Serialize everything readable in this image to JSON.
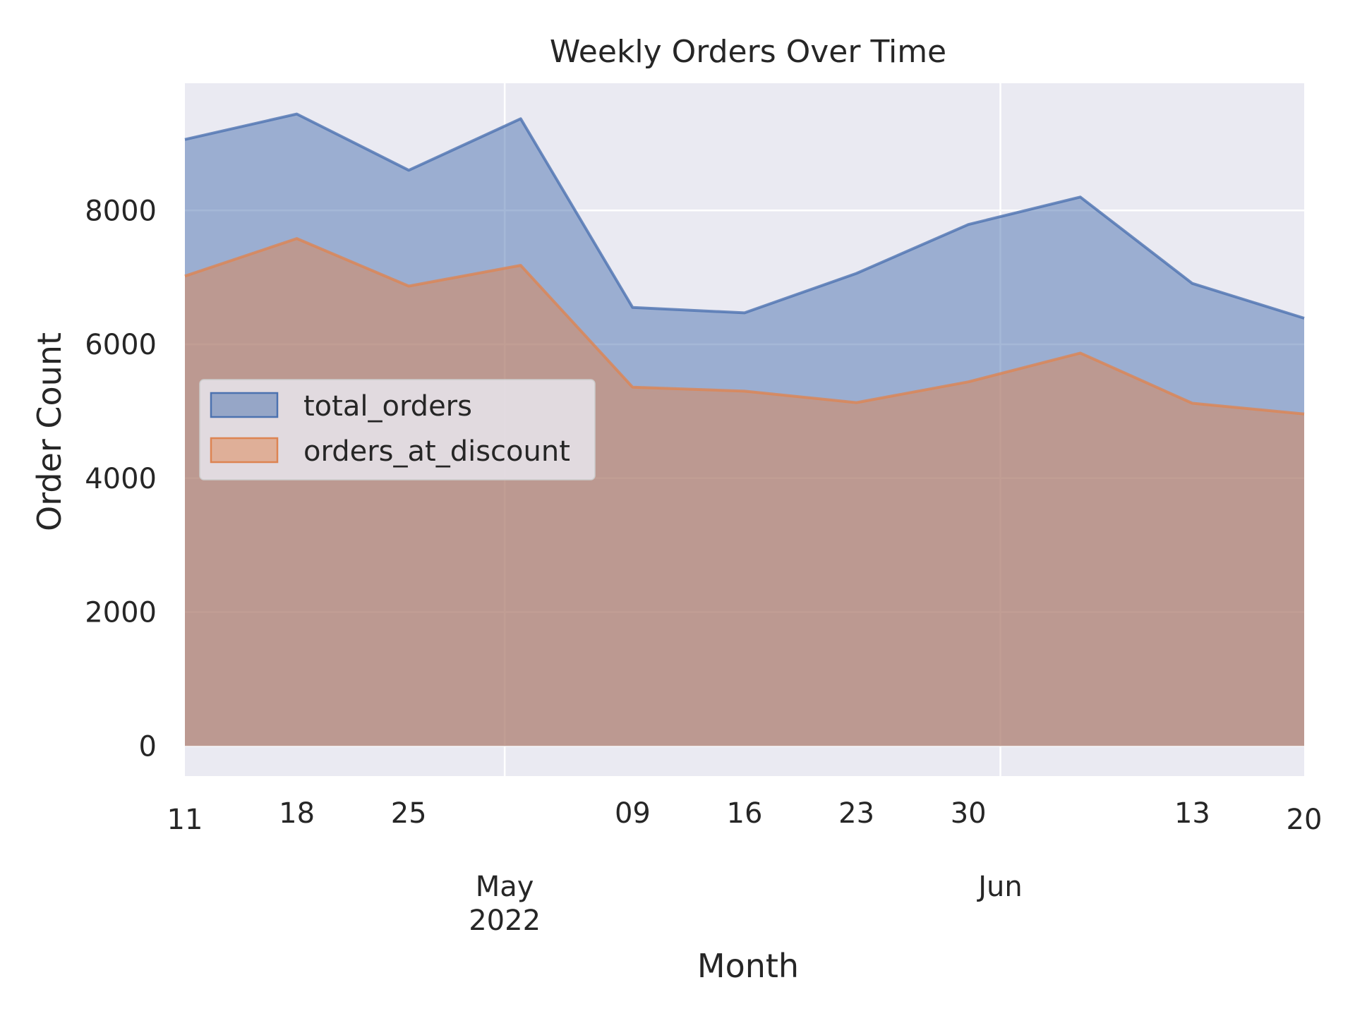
{
  "chart_data": {
    "type": "area",
    "title": "Weekly Orders Over Time",
    "xlabel": "Month",
    "ylabel": "Order Count",
    "x": [
      "2022-04-11",
      "2022-04-18",
      "2022-04-25",
      "2022-05-02",
      "2022-05-09",
      "2022-05-16",
      "2022-05-23",
      "2022-05-30",
      "2022-06-06",
      "2022-06-13",
      "2022-06-20"
    ],
    "series": [
      {
        "name": "total_orders",
        "color": "#4c72b0",
        "values": [
          9060,
          9440,
          8600,
          9370,
          6550,
          6470,
          7060,
          7790,
          8200,
          6910,
          6390
        ]
      },
      {
        "name": "orders_at_discount",
        "color": "#dd8452",
        "values": [
          7020,
          7580,
          6870,
          7180,
          5360,
          5300,
          5130,
          5440,
          5870,
          5120,
          4960
        ]
      }
    ],
    "ylim": [
      -450,
      9900
    ],
    "yticks": [
      0,
      2000,
      4000,
      6000,
      8000
    ],
    "ytick_labels": [
      "0",
      "2000",
      "4000",
      "6000",
      "8000"
    ],
    "xticks_minor": [
      {
        "date": "2022-04-11",
        "label": "11"
      },
      {
        "date": "2022-04-18",
        "label": "18"
      },
      {
        "date": "2022-04-25",
        "label": "25"
      },
      {
        "date": "2022-05-09",
        "label": "09"
      },
      {
        "date": "2022-05-16",
        "label": "16"
      },
      {
        "date": "2022-05-23",
        "label": "23"
      },
      {
        "date": "2022-05-30",
        "label": "30"
      },
      {
        "date": "2022-06-13",
        "label": "13"
      },
      {
        "date": "2022-06-20",
        "label": "20"
      }
    ],
    "xticks_major": [
      {
        "date": "2022-05-01",
        "label": "May",
        "sublabel": "2022"
      },
      {
        "date": "2022-06-01",
        "label": "Jun",
        "sublabel": ""
      }
    ],
    "grid": true,
    "background": "#eaeaf2",
    "legend_position": "center-left"
  }
}
